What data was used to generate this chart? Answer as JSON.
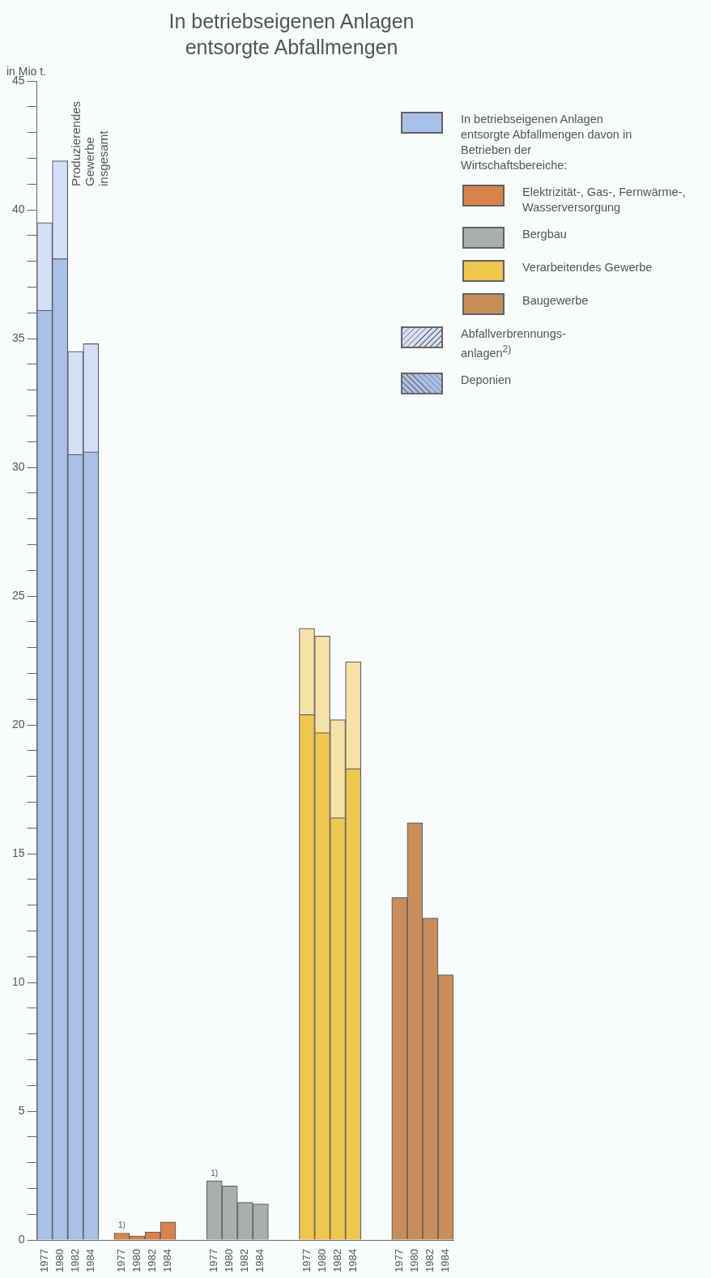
{
  "chart_data": {
    "type": "bar",
    "stacked": true,
    "title": "In betriebseigenen Anlagen entsorgte Abfallmengen",
    "ylabel": "in Mio t.",
    "categories": [
      "1977",
      "1980",
      "1982",
      "1984",
      null,
      "1977",
      "1980",
      "1982",
      "1984",
      null,
      null,
      "1977",
      "1980",
      "1982",
      "1984",
      null,
      null,
      "1977",
      "1980",
      "1982",
      "1984",
      null,
      null,
      "1977",
      "1980",
      "1982",
      "1984"
    ],
    "series": [
      {
        "name": "Deponien",
        "color": "#a9c0e8",
        "colors": [
          "#a9c0e8",
          "#a9c0e8",
          "#a9c0e8",
          "#a9c0e8",
          "#ffffff",
          "#d9824a",
          "#d9824a",
          "#d9824a",
          "#d9824a",
          "#ffffff",
          "#ffffff",
          "#a9aeae",
          "#a9aeae",
          "#a9aeae",
          "#a9aeae",
          "#ffffff",
          "#ffffff",
          "#efc64e",
          "#efc64e",
          "#efc64e",
          "#efc64e",
          "#ffffff",
          "#ffffff",
          "#c98d5a",
          "#c98d5a",
          "#c98d5a",
          "#c98d5a"
        ],
        "values": [
          36.1,
          38.1,
          30.5,
          30.6,
          null,
          0.27,
          0.16,
          0.31,
          0.7,
          null,
          null,
          2.3,
          2.1,
          1.46,
          1.4,
          null,
          null,
          20.4,
          19.7,
          16.4,
          18.3,
          null,
          null,
          13.3,
          16.2,
          12.5,
          10.3
        ]
      },
      {
        "name": "Abfallverbrennungs-anlagen$^{2)}$",
        "color": "#d3e0f5",
        "colors": [
          "#d3e0f5",
          "#d3e0f5",
          "#d3e0f5",
          "#d3e0f5",
          "#ffffff",
          "#ecc0a4",
          "#ecc0a4",
          "#ecc0a4",
          "#ecc0a4",
          "#ffffff",
          "#ffffff",
          "#d4d6d6",
          "#d4d6d6",
          "#d4d6d6",
          "#d4d6d6",
          "#ffffff",
          "#ffffff",
          "#f7e2a6",
          "#f7e2a6",
          "#f7e2a6",
          "#f7e2a6",
          "#ffffff",
          "#ffffff",
          "#e4c6ac",
          "#e4c6ac",
          "#e4c6ac",
          "#e4c6ac"
        ],
        "values": [
          3.4,
          3.8,
          4.0,
          4.2,
          null,
          null,
          null,
          null,
          null,
          null,
          null,
          null,
          null,
          null,
          null,
          null,
          null,
          3.35,
          3.75,
          3.8,
          4.15,
          null,
          null,
          null,
          null,
          null,
          null
        ]
      }
    ],
    "ylim": [
      0,
      45
    ],
    "yticks": [
      0,
      {
        "value": 1,
        "label": null
      },
      {
        "value": 2,
        "label": null
      },
      {
        "value": 3,
        "label": null
      },
      {
        "value": 4,
        "label": null
      },
      5,
      {
        "value": 6,
        "label": null
      },
      {
        "value": 7,
        "label": null
      },
      {
        "value": 8,
        "label": null
      },
      {
        "value": 9,
        "label": null
      },
      10,
      {
        "value": 11,
        "label": null
      },
      {
        "value": 12,
        "label": null
      },
      {
        "value": 13,
        "label": null
      },
      {
        "value": 14,
        "label": null
      },
      15,
      {
        "value": 16,
        "label": null
      },
      {
        "value": 17,
        "label": null
      },
      {
        "value": 18,
        "label": null
      },
      {
        "value": 19,
        "label": null
      },
      20,
      {
        "value": 21,
        "label": null
      },
      {
        "value": 22,
        "label": null
      },
      {
        "value": 23,
        "label": null
      },
      {
        "value": 24,
        "label": null
      },
      25,
      {
        "value": 26,
        "label": null
      },
      {
        "value": 27,
        "label": null
      },
      {
        "value": 28,
        "label": null
      },
      {
        "value": 29,
        "label": null
      },
      30,
      {
        "value": 31,
        "label": null
      },
      {
        "value": 32,
        "label": null
      },
      {
        "value": 33,
        "label": null
      },
      {
        "value": 34,
        "label": null
      },
      35,
      {
        "value": 36,
        "label": null
      },
      {
        "value": 37,
        "label": null
      },
      {
        "value": 38,
        "label": null
      },
      {
        "value": 39,
        "label": null
      },
      40,
      {
        "value": 41,
        "label": null
      },
      {
        "value": 42,
        "label": null
      },
      {
        "value": 43,
        "label": null
      },
      {
        "value": 44,
        "label": null
      },
      45
    ],
    "grid": false,
    "legend": "top right",
    "annotations": [
      "Produzierendes Gewerbe insgesamt",
      "In betriebseigenen Anlagen entsorgte Abfallmengen davon in Betrieben der Wirtschaftsbereiche:",
      "Elektrizität-, Gas-, Fernwärme-, Wasserversorgung",
      "Bergbau",
      "Verarbeitendes Gewerbe",
      "Baugewerbe",
      "1)",
      "1)"
    ]
  }
}
